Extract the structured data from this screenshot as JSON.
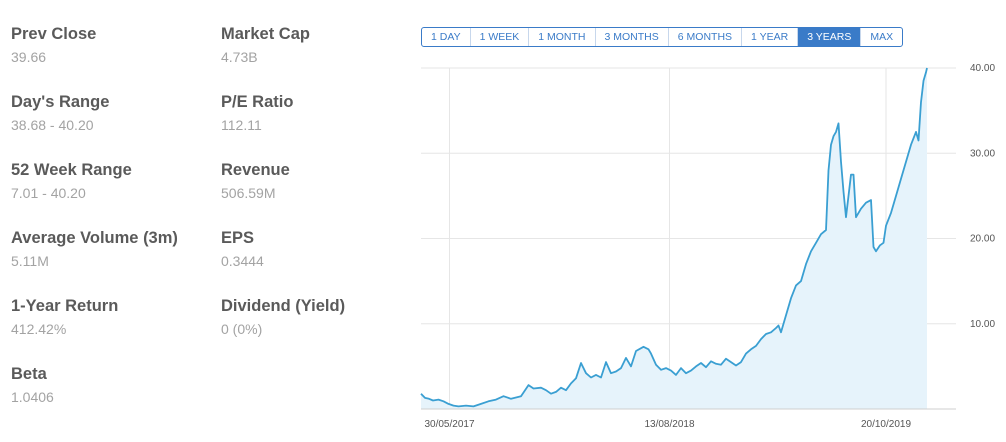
{
  "stats": {
    "prev_close": {
      "label": "Prev Close",
      "value": "39.66"
    },
    "market_cap": {
      "label": "Market Cap",
      "value": "4.73B"
    },
    "days_range": {
      "label": "Day's Range",
      "value": "38.68 - 40.20"
    },
    "pe_ratio": {
      "label": "P/E Ratio",
      "value": "112.11"
    },
    "week52_range": {
      "label": "52 Week Range",
      "value": "7.01 - 40.20"
    },
    "revenue": {
      "label": "Revenue",
      "value": "506.59M"
    },
    "avg_volume": {
      "label": "Average Volume",
      "label_suffix": "(3m)",
      "value": "5.11M"
    },
    "eps": {
      "label": "EPS",
      "value": "0.3444"
    },
    "one_year_return": {
      "label": "1-Year Return",
      "value": "412.42%"
    },
    "dividend": {
      "label": "Dividend",
      "label_suffix": "(Yield)",
      "value": "0 (0%)"
    },
    "beta": {
      "label": "Beta",
      "value": "1.0406"
    }
  },
  "ranges": [
    {
      "label": "1 DAY",
      "active": false
    },
    {
      "label": "1 WEEK",
      "active": false
    },
    {
      "label": "1 MONTH",
      "active": false
    },
    {
      "label": "3 MONTHS",
      "active": false
    },
    {
      "label": "6 MONTHS",
      "active": false
    },
    {
      "label": "1 YEAR",
      "active": false
    },
    {
      "label": "3 YEARS",
      "active": true
    },
    {
      "label": "MAX",
      "active": false
    }
  ],
  "colors": {
    "accent": "#3a7bc8",
    "line": "#3a9fd2",
    "area": "#e6f3fb"
  },
  "chart_data": {
    "type": "area",
    "x_tick_labels": [
      "30/05/2017",
      "13/08/2018",
      "20/10/2019"
    ],
    "x_tick_days": [
      57,
      497,
      930
    ],
    "y_ticks": [
      10,
      20,
      30,
      40
    ],
    "y_tick_labels": [
      "10.00",
      "20.00",
      "30.00",
      "40.00"
    ],
    "xlim": [
      0,
      1070
    ],
    "ylim": [
      0,
      40
    ],
    "grid": true,
    "points": [
      [
        0,
        1.8
      ],
      [
        8,
        1.3
      ],
      [
        16,
        1.2
      ],
      [
        24,
        1.0
      ],
      [
        35,
        1.1
      ],
      [
        45,
        0.9
      ],
      [
        55,
        0.6
      ],
      [
        65,
        0.4
      ],
      [
        75,
        0.3
      ],
      [
        90,
        0.4
      ],
      [
        105,
        0.3
      ],
      [
        120,
        0.6
      ],
      [
        135,
        0.9
      ],
      [
        150,
        1.1
      ],
      [
        165,
        1.5
      ],
      [
        180,
        1.2
      ],
      [
        200,
        1.5
      ],
      [
        215,
        2.8
      ],
      [
        225,
        2.4
      ],
      [
        240,
        2.5
      ],
      [
        250,
        2.2
      ],
      [
        260,
        1.8
      ],
      [
        270,
        2.0
      ],
      [
        280,
        2.5
      ],
      [
        290,
        2.2
      ],
      [
        300,
        3.0
      ],
      [
        310,
        3.6
      ],
      [
        320,
        5.4
      ],
      [
        330,
        4.2
      ],
      [
        340,
        3.7
      ],
      [
        350,
        4.0
      ],
      [
        360,
        3.7
      ],
      [
        370,
        5.5
      ],
      [
        380,
        4.2
      ],
      [
        390,
        4.4
      ],
      [
        400,
        4.8
      ],
      [
        410,
        6.0
      ],
      [
        420,
        5.0
      ],
      [
        430,
        6.8
      ],
      [
        445,
        7.3
      ],
      [
        455,
        7.0
      ],
      [
        460,
        6.5
      ],
      [
        470,
        5.2
      ],
      [
        480,
        4.6
      ],
      [
        490,
        4.8
      ],
      [
        500,
        4.5
      ],
      [
        510,
        4.0
      ],
      [
        520,
        4.8
      ],
      [
        530,
        4.2
      ],
      [
        540,
        4.5
      ],
      [
        550,
        5.0
      ],
      [
        560,
        5.4
      ],
      [
        570,
        4.9
      ],
      [
        580,
        5.6
      ],
      [
        590,
        5.3
      ],
      [
        600,
        5.2
      ],
      [
        610,
        5.9
      ],
      [
        620,
        5.5
      ],
      [
        630,
        5.1
      ],
      [
        640,
        5.5
      ],
      [
        650,
        6.5
      ],
      [
        660,
        7.0
      ],
      [
        670,
        7.4
      ],
      [
        680,
        8.2
      ],
      [
        690,
        8.8
      ],
      [
        700,
        9.0
      ],
      [
        710,
        9.5
      ],
      [
        715,
        9.8
      ],
      [
        720,
        9.0
      ],
      [
        730,
        11.0
      ],
      [
        740,
        13.0
      ],
      [
        750,
        14.5
      ],
      [
        760,
        15.0
      ],
      [
        770,
        17.0
      ],
      [
        780,
        18.5
      ],
      [
        790,
        19.5
      ],
      [
        800,
        20.5
      ],
      [
        810,
        21.0
      ],
      [
        815,
        28.0
      ],
      [
        820,
        31.0
      ],
      [
        825,
        32.0
      ],
      [
        830,
        32.5
      ],
      [
        835,
        33.5
      ],
      [
        840,
        29.0
      ],
      [
        845,
        25.5
      ],
      [
        850,
        22.5
      ],
      [
        855,
        25.0
      ],
      [
        860,
        27.5
      ],
      [
        865,
        27.5
      ],
      [
        870,
        22.5
      ],
      [
        880,
        23.5
      ],
      [
        890,
        24.2
      ],
      [
        900,
        24.5
      ],
      [
        905,
        19.0
      ],
      [
        910,
        18.5
      ],
      [
        918,
        19.2
      ],
      [
        925,
        19.5
      ],
      [
        930,
        21.5
      ],
      [
        940,
        23.0
      ],
      [
        950,
        25.0
      ],
      [
        960,
        27.0
      ],
      [
        970,
        29.0
      ],
      [
        980,
        31.0
      ],
      [
        990,
        32.5
      ],
      [
        995,
        31.5
      ],
      [
        1000,
        36.0
      ],
      [
        1005,
        38.5
      ],
      [
        1010,
        39.5
      ],
      [
        1012,
        40.0
      ]
    ]
  }
}
